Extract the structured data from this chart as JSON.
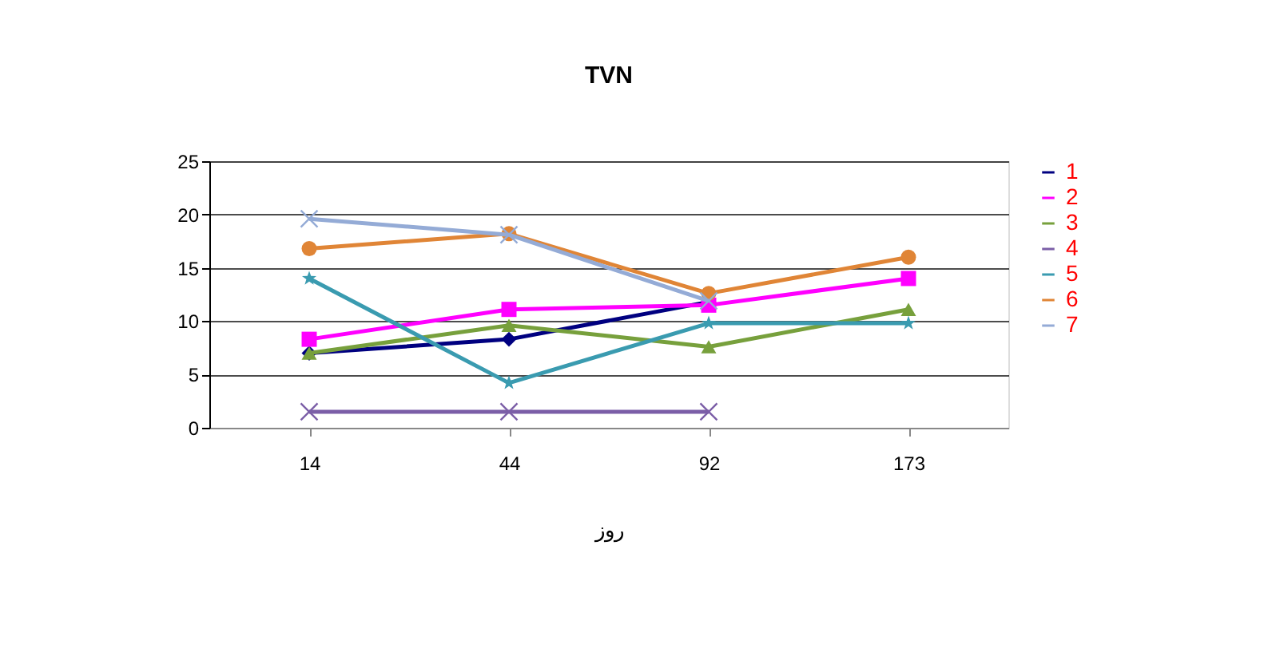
{
  "chart_data": {
    "type": "line",
    "title": "TVN",
    "xlabel": "روز",
    "categories": [
      "14",
      "44",
      "92",
      "173"
    ],
    "series": [
      {
        "name": "1",
        "color": "#000080",
        "marker": "diamond",
        "values": [
          7,
          8.3,
          11.8,
          null
        ]
      },
      {
        "name": "2",
        "color": "#ff00ff",
        "marker": "square",
        "values": [
          8.3,
          11.1,
          11.5,
          14
        ]
      },
      {
        "name": "3",
        "color": "#77a03c",
        "marker": "triangle",
        "values": [
          7,
          9.6,
          7.6,
          11.1
        ]
      },
      {
        "name": "4",
        "color": "#7b5ea7",
        "marker": "cross",
        "values": [
          1.5,
          1.5,
          1.5,
          null
        ]
      },
      {
        "name": "5",
        "color": "#3a9bb0",
        "marker": "star",
        "line_style": "solid",
        "values": [
          14,
          4.2,
          9.8,
          9.8
        ]
      },
      {
        "name": "6",
        "color": "#e08536",
        "marker": "circle",
        "values": [
          16.8,
          18.2,
          12.6,
          16
        ]
      },
      {
        "name": "7",
        "color": "#94abd6",
        "marker": "cross",
        "values": [
          19.6,
          18.1,
          11.9,
          null
        ]
      }
    ],
    "ylim": [
      0,
      25
    ],
    "yticks": [
      0,
      5,
      10,
      15,
      20,
      25
    ],
    "grid": "y",
    "legend": "right"
  }
}
